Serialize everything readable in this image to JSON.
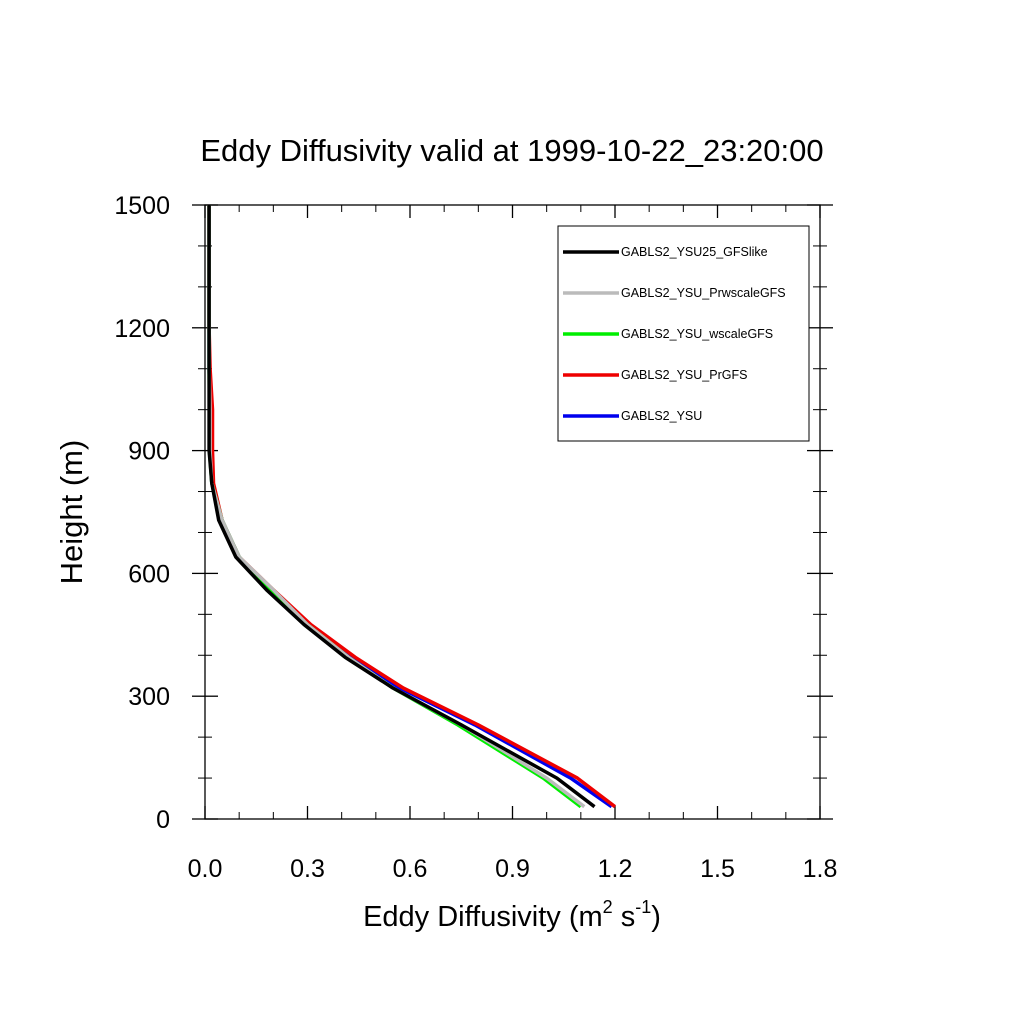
{
  "chart_data": {
    "type": "line",
    "title": "Eddy Diffusivity valid at 1999-10-22_23:20:00",
    "xlabel": "Eddy Diffusivity (m",
    "xlabel_sup1": "2",
    "xlabel_mid": " s",
    "xlabel_sup2": "-1",
    "xlabel_end": ")",
    "ylabel": "Height (m)",
    "xlim": [
      0.0,
      1.8
    ],
    "ylim": [
      0,
      1500
    ],
    "x_ticks": [
      0.0,
      0.3,
      0.6,
      0.9,
      1.2,
      1.5,
      1.8
    ],
    "x_tick_labels": [
      "0.0",
      "0.3",
      "0.6",
      "0.9",
      "1.2",
      "1.5",
      "1.8"
    ],
    "y_ticks": [
      0,
      300,
      600,
      900,
      1200,
      1500
    ],
    "y_tick_labels": [
      "0",
      "300",
      "600",
      "900",
      "1200",
      "1500"
    ],
    "grid": false,
    "legend_position": "top-right",
    "series": [
      {
        "name": "GABLS2_YSU25_GFSlike",
        "color": "#000000",
        "points": [
          [
            1.14,
            30
          ],
          [
            1.03,
            100
          ],
          [
            0.75,
            230
          ],
          [
            0.55,
            320
          ],
          [
            0.41,
            395
          ],
          [
            0.29,
            475
          ],
          [
            0.18,
            560
          ],
          [
            0.09,
            640
          ],
          [
            0.04,
            730
          ],
          [
            0.02,
            820
          ],
          [
            0.012,
            900
          ],
          [
            0.012,
            1000
          ],
          [
            0.012,
            1100
          ],
          [
            0.012,
            1200
          ],
          [
            0.012,
            1300
          ],
          [
            0.012,
            1400
          ],
          [
            0.012,
            1500
          ]
        ]
      },
      {
        "name": "GABLS2_YSU_PrwscaleGFS",
        "color": "#bbbbbb",
        "points": [
          [
            1.11,
            30
          ],
          [
            1.0,
            100
          ],
          [
            0.75,
            230
          ],
          [
            0.55,
            320
          ],
          [
            0.42,
            395
          ],
          [
            0.3,
            475
          ],
          [
            0.2,
            560
          ],
          [
            0.1,
            640
          ],
          [
            0.05,
            730
          ],
          [
            0.02,
            820
          ],
          [
            0.015,
            900
          ],
          [
            0.015,
            1000
          ],
          [
            0.012,
            1100
          ],
          [
            0.012,
            1200
          ],
          [
            0.012,
            1300
          ],
          [
            0.012,
            1400
          ],
          [
            0.012,
            1500
          ]
        ]
      },
      {
        "name": "GABLS2_YSU_wscaleGFS",
        "color": "#00ee00",
        "points": [
          [
            1.1,
            30
          ],
          [
            0.99,
            100
          ],
          [
            0.74,
            230
          ],
          [
            0.55,
            320
          ],
          [
            0.42,
            395
          ],
          [
            0.3,
            475
          ],
          [
            0.19,
            560
          ],
          [
            0.1,
            640
          ],
          [
            0.05,
            730
          ],
          [
            0.02,
            820
          ],
          [
            0.013,
            900
          ],
          [
            0.013,
            1000
          ],
          [
            0.012,
            1100
          ],
          [
            0.012,
            1200
          ],
          [
            0.012,
            1300
          ],
          [
            0.012,
            1400
          ],
          [
            0.012,
            1500
          ]
        ]
      },
      {
        "name": "GABLS2_YSU_PrGFS",
        "color": "#ee0000",
        "points": [
          [
            1.2,
            30
          ],
          [
            1.09,
            100
          ],
          [
            0.8,
            230
          ],
          [
            0.58,
            320
          ],
          [
            0.44,
            395
          ],
          [
            0.31,
            475
          ],
          [
            0.2,
            560
          ],
          [
            0.1,
            640
          ],
          [
            0.05,
            730
          ],
          [
            0.025,
            820
          ],
          [
            0.022,
            900
          ],
          [
            0.022,
            1000
          ],
          [
            0.015,
            1100
          ],
          [
            0.012,
            1200
          ],
          [
            0.012,
            1300
          ],
          [
            0.012,
            1400
          ],
          [
            0.012,
            1500
          ]
        ]
      },
      {
        "name": "GABLS2_YSU",
        "color": "#0000ee",
        "points": [
          [
            1.19,
            30
          ],
          [
            1.07,
            100
          ],
          [
            0.79,
            230
          ],
          [
            0.57,
            320
          ],
          [
            0.43,
            395
          ],
          [
            0.3,
            475
          ],
          [
            0.19,
            560
          ],
          [
            0.1,
            640
          ],
          [
            0.05,
            730
          ],
          [
            0.02,
            820
          ],
          [
            0.015,
            900
          ],
          [
            0.015,
            1000
          ],
          [
            0.012,
            1100
          ],
          [
            0.012,
            1200
          ],
          [
            0.012,
            1300
          ],
          [
            0.012,
            1400
          ],
          [
            0.012,
            1500
          ]
        ]
      }
    ]
  }
}
